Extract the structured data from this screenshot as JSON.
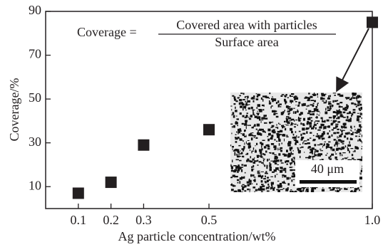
{
  "chart_data": {
    "type": "scatter",
    "x": [
      0.1,
      0.2,
      0.3,
      0.5,
      1.0
    ],
    "values": [
      7,
      12,
      29,
      36,
      85
    ],
    "color": "#231f20",
    "xlim": [
      0,
      1
    ],
    "ylim": [
      0,
      90
    ],
    "xticks": [
      0.1,
      0.2,
      0.3,
      0.5,
      {
        "value": 1,
        "label": "1.0"
      }
    ],
    "yticks": [
      10,
      30,
      50,
      70,
      90
    ],
    "xlabel": "Ag particle concentration/wt%",
    "ylabel": "Coverage/%",
    "formula": {
      "lhs": "Coverage =",
      "numerator": "Covered area with particles",
      "denominator": "Surface area"
    },
    "scale_bar_label": "40 μm"
  }
}
